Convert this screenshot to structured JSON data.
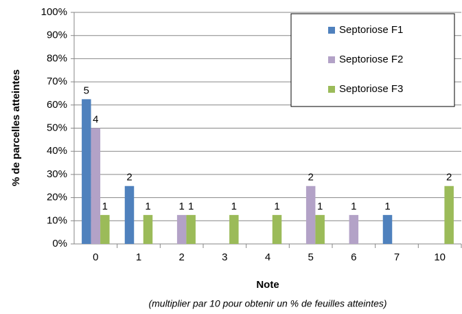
{
  "chart_data": {
    "type": "bar",
    "y_label": "% de parcelles atteintes",
    "x_label": "Note",
    "note": "(multiplier par 10 pour obtenir un % de feuilles atteintes)",
    "categories": [
      "0",
      "1",
      "2",
      "3",
      "4",
      "5",
      "6",
      "7",
      "10"
    ],
    "series": [
      {
        "name": "Septoriose F1",
        "color": "#4f81bd",
        "values": [
          62.5,
          25,
          0,
          0,
          0,
          0,
          0,
          12.5,
          0
        ],
        "counts": [
          5,
          2,
          null,
          null,
          null,
          null,
          null,
          1,
          null
        ]
      },
      {
        "name": "Septoriose F2",
        "color": "#b3a2c7",
        "values": [
          50,
          0,
          12.5,
          0,
          0,
          25,
          12.5,
          0,
          0
        ],
        "counts": [
          4,
          null,
          1,
          null,
          null,
          2,
          1,
          null,
          null
        ]
      },
      {
        "name": "Septoriose F3",
        "color": "#9bbb59",
        "values": [
          12.5,
          12.5,
          12.5,
          12.5,
          12.5,
          12.5,
          0,
          0,
          25
        ],
        "counts": [
          1,
          1,
          1,
          1,
          1,
          1,
          null,
          null,
          2
        ]
      }
    ],
    "ylim": [
      0,
      100
    ],
    "yticks": [
      {
        "value": 0,
        "label": "0%"
      },
      {
        "value": 10,
        "label": "10%"
      },
      {
        "value": 20,
        "label": "20%"
      },
      {
        "value": 30,
        "label": "30%"
      },
      {
        "value": 40,
        "label": "40%"
      },
      {
        "value": 50,
        "label": "50%"
      },
      {
        "value": 60,
        "label": "60%"
      },
      {
        "value": 70,
        "label": "70%"
      },
      {
        "value": 80,
        "label": "80%"
      },
      {
        "value": 90,
        "label": "90%"
      },
      {
        "value": 100,
        "label": "100%"
      }
    ],
    "grid": true,
    "legend": "upper right"
  }
}
